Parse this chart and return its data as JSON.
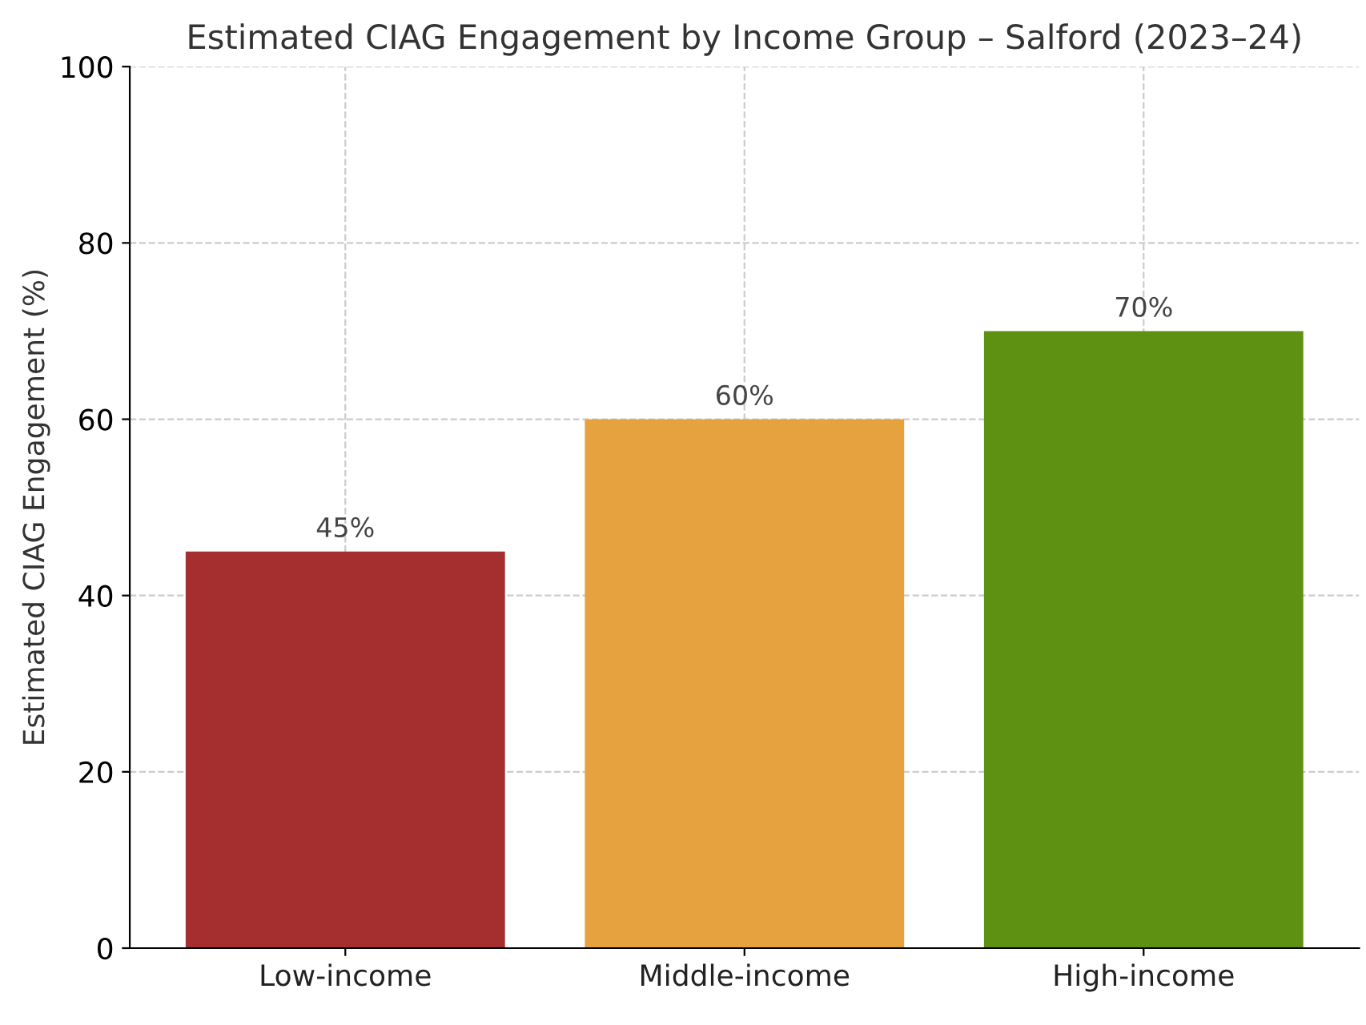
{
  "chart_data": {
    "type": "bar",
    "title": "Estimated CIAG Engagement by Income Group – Salford (2023–24)",
    "ylabel": "Estimated CIAG Engagement (%)",
    "categories": [
      "Low-income",
      "Middle-income",
      "High-income"
    ],
    "values": [
      45,
      60,
      70
    ],
    "colors": [
      "#a52f2f",
      "#e5a23e",
      "#5e9112"
    ],
    "value_labels": [
      "45%",
      "60%",
      "70%"
    ],
    "ylim": [
      0,
      100
    ],
    "yticks": [
      0,
      20,
      40,
      60,
      80,
      100
    ],
    "grid": true
  }
}
